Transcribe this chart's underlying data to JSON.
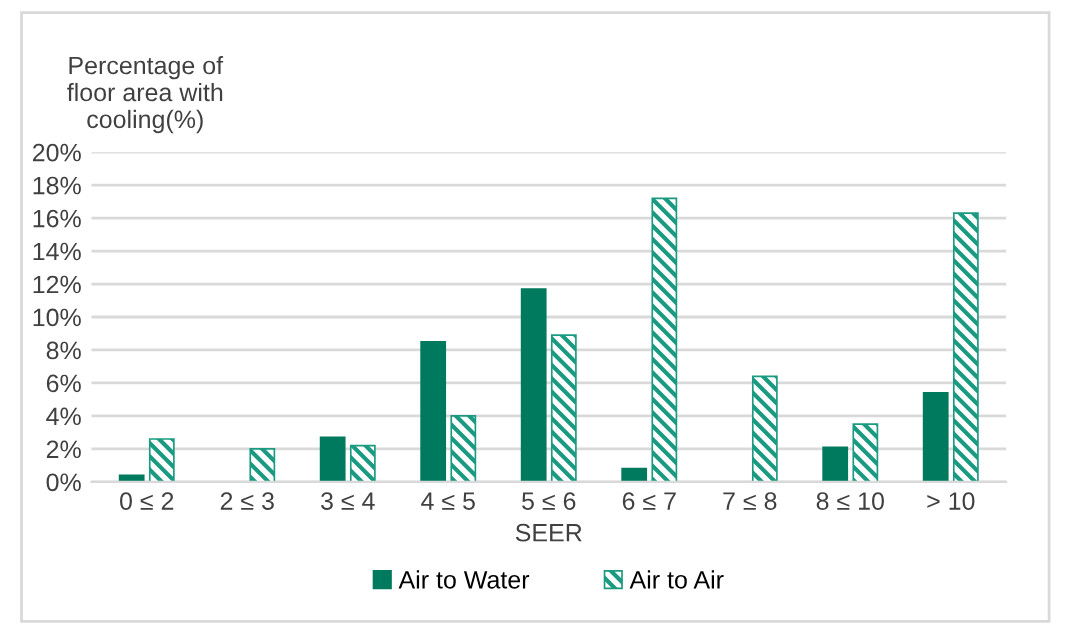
{
  "chart_data": {
    "type": "bar",
    "ylabel": "Percentage of\nfloor area with\ncooling(%)",
    "xlabel": "SEER",
    "categories": [
      "0 ≤ 2",
      "2 ≤ 3",
      "3 ≤ 4",
      "4 ≤ 5",
      "5 ≤ 6",
      "6 ≤ 7",
      "7 ≤ 8",
      "8 ≤ 10",
      "> 10"
    ],
    "series": [
      {
        "name": "Air to Water",
        "color": "#007a5e",
        "values": [
          0.4,
          null,
          2.7,
          8.5,
          11.7,
          0.8,
          null,
          2.1,
          5.4
        ]
      },
      {
        "name": "Air to Air",
        "color": "#1a9a80",
        "values": [
          2.6,
          2.0,
          2.2,
          4.0,
          8.9,
          17.2,
          6.4,
          3.5,
          16.3
        ]
      }
    ],
    "ylim": [
      0,
      20
    ],
    "yticks": [
      {
        "value": 0,
        "label": "0%"
      },
      {
        "value": 2,
        "label": "2%"
      },
      {
        "value": 4,
        "label": "4%"
      },
      {
        "value": 6,
        "label": "6%"
      },
      {
        "value": 8,
        "label": "8%"
      },
      {
        "value": 10,
        "label": "10%"
      },
      {
        "value": 12,
        "label": "12%"
      },
      {
        "value": 14,
        "label": "14%"
      },
      {
        "value": 16,
        "label": "16%"
      },
      {
        "value": 18,
        "label": "18%"
      },
      {
        "value": 20,
        "label": "20%"
      }
    ],
    "grid": "y",
    "legend": "bottom"
  }
}
